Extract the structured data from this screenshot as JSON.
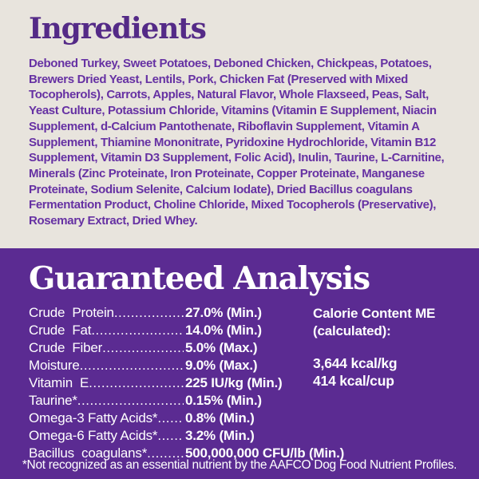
{
  "colors": {
    "top_background": "#e8e4dd",
    "bottom_background": "#5b2b92",
    "heading_purple": "#542a87",
    "body_purple": "#6631a3",
    "text_white": "#ffffff"
  },
  "ingredients": {
    "title": "Ingredients",
    "text": "Deboned Turkey, Sweet Potatoes, Deboned Chicken, Chickpeas, Potatoes, Brewers Dried Yeast, Lentils, Pork, Chicken Fat (Preserved with Mixed Tocopherols), Carrots, Apples, Natural Flavor, Whole Flaxseed, Peas, Salt, Yeast Culture, Potassium Chloride, Vitamins (Vitamin E Supplement, Niacin Supplement, d-Calcium Pantothenate, Riboflavin Supplement, Vitamin A Supplement, Thiamine Mononitrate, Pyridoxine Hydrochloride, Vitamin B12 Supplement, Vitamin D3 Supplement, Folic Acid), Inulin, Taurine, L-Carnitine, Minerals (Zinc Proteinate, Iron Proteinate, Copper Proteinate, Manganese Proteinate, Sodium Selenite, Calcium Iodate), Dried Bacillus coagulans Fermentation Product, Choline Chloride, Mixed Tocopherols (Preservative), Rosemary Extract, Dried Whey."
  },
  "guaranteed_analysis": {
    "title": "Guaranteed Analysis",
    "leader": "............................................................",
    "rows": [
      {
        "label": "Crude  Protein",
        "value": "27.0% (Min.)"
      },
      {
        "label": "Crude  Fat",
        "value": "14.0% (Min.)"
      },
      {
        "label": "Crude  Fiber",
        "value": "5.0% (Max.)"
      },
      {
        "label": "Moisture",
        "value": "9.0% (Max.)"
      },
      {
        "label": "Vitamin  E",
        "value": "225 IU/kg (Min.)"
      },
      {
        "label": "Taurine*",
        "value": "0.15% (Min.)"
      },
      {
        "label": "Omega-3 Fatty Acids*",
        "value": "0.8% (Min.)"
      },
      {
        "label": "Omega-6 Fatty Acids*",
        "value": "3.2% (Min.)"
      },
      {
        "label": "Bacillus  coagulans*",
        "value": "500,000,000 CFU/lb (Min.)"
      }
    ],
    "calories": {
      "title_line1": "Calorie Content ME",
      "title_line2": "(calculated):",
      "values": [
        "3,644 kcal/kg",
        "414 kcal/cup"
      ]
    },
    "footnote": "*Not recognized as an essential nutrient by the AAFCO Dog Food Nutrient Profiles."
  }
}
